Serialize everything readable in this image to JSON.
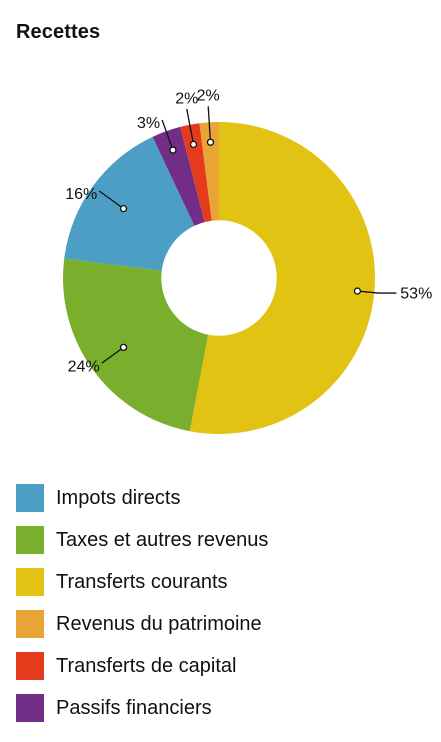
{
  "chart_data": {
    "type": "pie",
    "title": "Recettes",
    "inner_radius_ratio": 0.37,
    "categories": [
      "Transferts courants",
      "Taxes et autres revenus",
      "Impots directs",
      "Passifs financiers",
      "Transferts de capital",
      "Revenus du patrimoine"
    ],
    "values": [
      53,
      24,
      16,
      3,
      2,
      2
    ],
    "value_labels": [
      "53%",
      "24%",
      "16%",
      "3%",
      "2%",
      "2%"
    ],
    "colors": [
      "#e2c313",
      "#7aaf2e",
      "#4c9ec5",
      "#722d86",
      "#e33b1c",
      "#e9a436"
    ]
  },
  "legend": [
    {
      "label": "Impots directs",
      "color": "#4c9ec5"
    },
    {
      "label": "Taxes et autres revenus",
      "color": "#7aaf2e"
    },
    {
      "label": "Transferts courants",
      "color": "#e2c313"
    },
    {
      "label": "Revenus du patrimoine",
      "color": "#e9a436"
    },
    {
      "label": "Transferts de capital",
      "color": "#e33b1c"
    },
    {
      "label": "Passifs financiers",
      "color": "#722d86"
    }
  ]
}
